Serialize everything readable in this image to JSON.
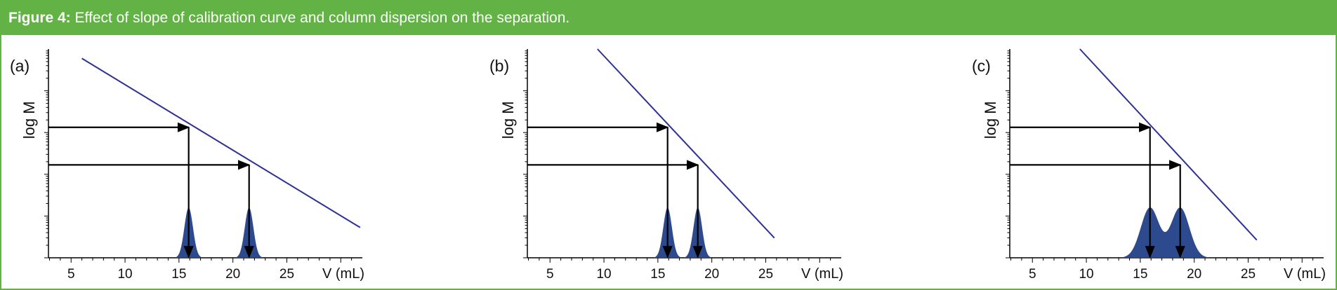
{
  "header": {
    "figure_label": "Figure 4:",
    "caption": "Effect of slope of calibration curve and column dispersion on the separation.",
    "background_color": "#62b246"
  },
  "colors": {
    "calibration_line": "#2e3192",
    "peak_fill": "#2e4a8f",
    "arrow": "#000000",
    "axis": "#000000"
  },
  "chart_data": [
    {
      "panel_label": "(a)",
      "type": "line",
      "xlabel": "V (mL)",
      "ylabel": "log M",
      "x_ticks": [
        5,
        10,
        15,
        20,
        25
      ],
      "xlim": [
        2.9,
        32
      ],
      "ylim": [
        0,
        1
      ],
      "y_axis_numbered": false,
      "calibration_line": {
        "x": [
          6,
          31.8
        ],
        "y": [
          0.955,
          0.145
        ]
      },
      "markers": [
        {
          "x": 15.9,
          "y": 0.625
        },
        {
          "x": 21.5,
          "y": 0.445
        }
      ],
      "peaks": [
        {
          "center": 15.9,
          "sigma": 0.4,
          "height": 0.24
        },
        {
          "center": 21.5,
          "sigma": 0.4,
          "height": 0.24
        }
      ]
    },
    {
      "panel_label": "(b)",
      "type": "line",
      "xlabel": "V (mL)",
      "ylabel": "log M",
      "x_ticks": [
        5,
        10,
        15,
        20,
        25
      ],
      "xlim": [
        2.9,
        32
      ],
      "ylim": [
        0,
        1
      ],
      "y_axis_numbered": false,
      "calibration_line": {
        "x": [
          9.4,
          25.8
        ],
        "y": [
          1.0,
          0.095
        ]
      },
      "markers": [
        {
          "x": 15.9,
          "y": 0.625
        },
        {
          "x": 18.7,
          "y": 0.445
        }
      ],
      "peaks": [
        {
          "center": 15.9,
          "sigma": 0.4,
          "height": 0.24
        },
        {
          "center": 18.7,
          "sigma": 0.4,
          "height": 0.24
        }
      ]
    },
    {
      "panel_label": "(c)",
      "type": "line",
      "xlabel": "V (mL)",
      "ylabel": "log M",
      "x_ticks": [
        5,
        10,
        15,
        20,
        25
      ],
      "xlim": [
        2.9,
        32
      ],
      "ylim": [
        0,
        1
      ],
      "y_axis_numbered": false,
      "calibration_line": {
        "x": [
          9.4,
          25.8
        ],
        "y": [
          1.0,
          0.085
        ]
      },
      "markers": [
        {
          "x": 15.9,
          "y": 0.625
        },
        {
          "x": 18.7,
          "y": 0.445
        }
      ],
      "peaks": [
        {
          "center": 15.9,
          "sigma": 0.85,
          "height": 0.24
        },
        {
          "center": 18.7,
          "sigma": 0.85,
          "height": 0.24
        }
      ]
    }
  ]
}
